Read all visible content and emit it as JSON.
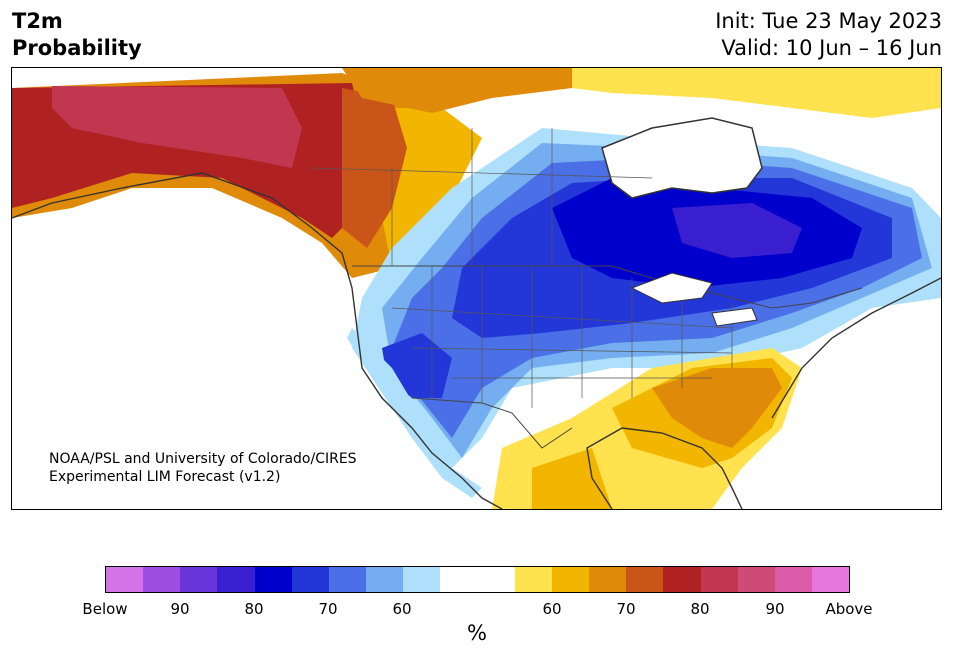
{
  "header": {
    "title_line1": "T2m",
    "title_line2": "Probability",
    "init": "Init: Tue 23 May 2023",
    "valid": "Valid: 10 Jun – 16 Jun"
  },
  "credit": {
    "line1": "NOAA/PSL and University of Colorado/CIRES",
    "line2": "Experimental LIM Forecast (v1.2)"
  },
  "colorbar": {
    "unit": "%",
    "colors": [
      "#d473e8",
      "#9e4fe0",
      "#6a35d8",
      "#3a1fd0",
      "#0000cc",
      "#2337d8",
      "#4b6fe6",
      "#74aef0",
      "#aee0fb",
      "#ffffff",
      "#ffffff",
      "#ffe24d",
      "#f2b600",
      "#e08a0a",
      "#c95618",
      "#b02222",
      "#c23650",
      "#d04a78",
      "#dc5caa",
      "#e776dc"
    ],
    "tick_labels": [
      "Below",
      "90",
      "80",
      "70",
      "60",
      "60",
      "70",
      "80",
      "90",
      "Above"
    ]
  },
  "map": {
    "region": "North America",
    "colors": {
      "above_90": "#c23650",
      "above_80": "#b02222",
      "above_70": "#c95618",
      "above_60": "#e08a0a",
      "above_50": "#f2b600",
      "above_40": "#ffe24d",
      "below_40": "#aee0fb",
      "below_50": "#74aef0",
      "below_60": "#4b6fe6",
      "below_70": "#2337d8",
      "below_80": "#0000cc",
      "below_90": "#3a1fd0"
    }
  }
}
